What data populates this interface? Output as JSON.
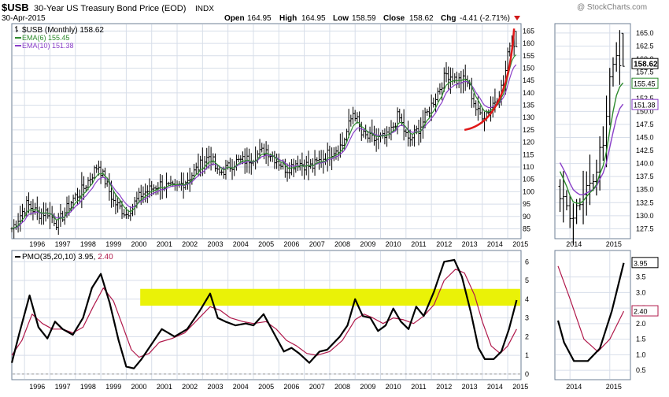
{
  "header": {
    "symbol": "$USB",
    "title": "30-Year US Treasury Bond Price (EOD)",
    "exchange": "INDX",
    "watermark": "@ StockCharts.com",
    "date": "30-Apr-2015",
    "open_label": "Open",
    "open": "164.95",
    "high_label": "High",
    "high": "164.95",
    "low_label": "Low",
    "low": "158.59",
    "close_label": "Close",
    "close": "158.62",
    "chg_label": "Chg",
    "chg": "-4.41 (-2.71%)"
  },
  "colors": {
    "background": "#ffffff",
    "plot_bg": "#ffffff",
    "panel_border": "#6d7f96",
    "grid": "#d7dee9",
    "price_bars": "#000000",
    "ema6": "#2e8b2e",
    "ema10": "#8a3fc8",
    "pmo": "#000000",
    "pmo_signal": "#b0184a",
    "highlight_band": "#eaf207",
    "arc": "#e01818",
    "down_triangle": "#d01818",
    "zero_line": "#9a9a9a"
  },
  "chart_data": [
    {
      "type": "ohlc",
      "panel": "price-main",
      "legend": [
        {
          "label": "$USB (Monthly) 158.62",
          "color": "#000000",
          "icon": "ohlc-bar-icon"
        },
        {
          "label": "EMA(6) 155.45",
          "color": "#2e8b2e"
        },
        {
          "label": "EMA(10) 151.38",
          "color": "#8a3fc8"
        }
      ],
      "x_range": [
        1995.5,
        2015.4
      ],
      "ylim": [
        81,
        168
      ],
      "y_ticks": [
        85,
        90,
        95,
        100,
        105,
        110,
        115,
        120,
        125,
        130,
        135,
        140,
        145,
        150,
        155,
        160,
        165
      ],
      "x_ticks": [
        "1996",
        "1997",
        "1998",
        "1999",
        "2000",
        "2001",
        "2002",
        "2003",
        "2004",
        "2005",
        "2006",
        "2007",
        "2008",
        "2009",
        "2010",
        "2011",
        "2012",
        "2013",
        "2014",
        "2015"
      ],
      "close_anchors": [
        [
          1995.5,
          85
        ],
        [
          1996.1,
          95
        ],
        [
          1996.55,
          91
        ],
        [
          1996.9,
          92
        ],
        [
          1997.3,
          87
        ],
        [
          1997.9,
          97
        ],
        [
          1998.3,
          101
        ],
        [
          1998.9,
          111
        ],
        [
          1999.5,
          96
        ],
        [
          2000.0,
          91
        ],
        [
          2000.6,
          99
        ],
        [
          2001.3,
          103
        ],
        [
          2001.9,
          101
        ],
        [
          2002.4,
          105
        ],
        [
          2003.3,
          115
        ],
        [
          2003.6,
          107
        ],
        [
          2004.3,
          112
        ],
        [
          2004.8,
          113
        ],
        [
          2005.5,
          117
        ],
        [
          2006.3,
          109
        ],
        [
          2006.7,
          112
        ],
        [
          2007.3,
          110
        ],
        [
          2007.9,
          115
        ],
        [
          2008.5,
          119
        ],
        [
          2008.95,
          133
        ],
        [
          2009.25,
          123
        ],
        [
          2009.7,
          121
        ],
        [
          2010.3,
          122
        ],
        [
          2010.7,
          131
        ],
        [
          2011.1,
          120
        ],
        [
          2011.6,
          127
        ],
        [
          2012.0,
          135
        ],
        [
          2012.6,
          148
        ],
        [
          2013.0,
          145
        ],
        [
          2013.4,
          145
        ],
        [
          2013.8,
          132
        ],
        [
          2014.1,
          131
        ],
        [
          2014.5,
          137
        ],
        [
          2014.85,
          144
        ],
        [
          2015.1,
          162
        ],
        [
          2015.35,
          158.62
        ]
      ],
      "ema6_last": 155.45,
      "ema10_last": 151.38,
      "last_close": 158.62,
      "annotation": "red arc under price (rounded bottom)"
    },
    {
      "type": "ohlc",
      "panel": "price-zoom",
      "x_ticks": [
        "2014",
        "2015"
      ],
      "ylim": [
        125.6,
        166.8
      ],
      "y_ticks": [
        127.5,
        130.0,
        132.5,
        135.0,
        137.5,
        140.0,
        142.5,
        145.0,
        147.5,
        150.0,
        152.5,
        155.0,
        157.5,
        160.0,
        162.5,
        165.0
      ],
      "value_labels": [
        {
          "text": "158.62",
          "value": 158.62
        },
        {
          "text": "155.45",
          "value": 155.45
        },
        {
          "text": "151.38",
          "value": 151.38
        }
      ]
    },
    {
      "type": "line",
      "panel": "pmo-main",
      "legend": {
        "text": "PMO(35,20,10) 3.95, 2.40",
        "value1": "3.95",
        "value2": "2.40"
      },
      "ylim": [
        -0.3,
        6.6
      ],
      "y_ticks": [
        0,
        1,
        2,
        3,
        4,
        5,
        6
      ],
      "highlight_band": [
        3.65,
        4.55
      ],
      "series": [
        {
          "name": "PMO",
          "color": "#000000",
          "points": [
            [
              1995.5,
              0.6
            ],
            [
              1995.8,
              2.2
            ],
            [
              1996.2,
              4.2
            ],
            [
              1996.55,
              2.5
            ],
            [
              1996.9,
              1.9
            ],
            [
              1997.2,
              2.8
            ],
            [
              1997.5,
              2.4
            ],
            [
              1997.9,
              2.1
            ],
            [
              1998.3,
              3.0
            ],
            [
              1998.65,
              4.6
            ],
            [
              1999.0,
              5.35
            ],
            [
              1999.35,
              3.8
            ],
            [
              1999.7,
              1.8
            ],
            [
              2000.0,
              0.4
            ],
            [
              2000.3,
              0.3
            ],
            [
              2000.6,
              0.8
            ],
            [
              2001.0,
              1.6
            ],
            [
              2001.4,
              2.4
            ],
            [
              2001.9,
              2.0
            ],
            [
              2002.4,
              2.4
            ],
            [
              2002.9,
              3.4
            ],
            [
              2003.3,
              4.3
            ],
            [
              2003.6,
              3.0
            ],
            [
              2003.9,
              2.8
            ],
            [
              2004.3,
              2.6
            ],
            [
              2004.7,
              2.7
            ],
            [
              2005.0,
              2.6
            ],
            [
              2005.4,
              3.2
            ],
            [
              2005.8,
              2.2
            ],
            [
              2006.2,
              1.2
            ],
            [
              2006.5,
              1.4
            ],
            [
              2006.8,
              1.1
            ],
            [
              2007.2,
              0.6
            ],
            [
              2007.6,
              1.2
            ],
            [
              2007.9,
              1.3
            ],
            [
              2008.4,
              2.0
            ],
            [
              2008.7,
              2.6
            ],
            [
              2009.0,
              4.0
            ],
            [
              2009.3,
              3.1
            ],
            [
              2009.6,
              3.0
            ],
            [
              2009.9,
              2.3
            ],
            [
              2010.2,
              2.6
            ],
            [
              2010.5,
              3.5
            ],
            [
              2010.8,
              2.8
            ],
            [
              2011.1,
              2.4
            ],
            [
              2011.4,
              3.6
            ],
            [
              2011.7,
              3.1
            ],
            [
              2012.1,
              4.4
            ],
            [
              2012.5,
              6.0
            ],
            [
              2012.9,
              6.1
            ],
            [
              2013.2,
              5.2
            ],
            [
              2013.55,
              3.3
            ],
            [
              2013.85,
              1.4
            ],
            [
              2014.1,
              0.8
            ],
            [
              2014.45,
              0.8
            ],
            [
              2014.75,
              1.2
            ],
            [
              2015.05,
              2.4
            ],
            [
              2015.35,
              3.95
            ]
          ]
        },
        {
          "name": "Signal",
          "color": "#b0184a",
          "points": [
            [
              1995.5,
              1.0
            ],
            [
              1995.9,
              1.8
            ],
            [
              1996.3,
              3.2
            ],
            [
              1996.7,
              2.7
            ],
            [
              1997.1,
              2.4
            ],
            [
              1997.5,
              2.4
            ],
            [
              1997.9,
              2.2
            ],
            [
              1998.3,
              2.5
            ],
            [
              1998.7,
              3.6
            ],
            [
              1999.1,
              4.6
            ],
            [
              1999.5,
              3.9
            ],
            [
              1999.85,
              2.6
            ],
            [
              2000.2,
              1.3
            ],
            [
              2000.5,
              0.9
            ],
            [
              2000.9,
              1.1
            ],
            [
              2001.3,
              1.7
            ],
            [
              2001.8,
              1.9
            ],
            [
              2002.3,
              2.2
            ],
            [
              2002.8,
              2.9
            ],
            [
              2003.3,
              3.6
            ],
            [
              2003.7,
              3.4
            ],
            [
              2004.1,
              3.0
            ],
            [
              2004.6,
              2.8
            ],
            [
              2005.0,
              2.7
            ],
            [
              2005.5,
              2.8
            ],
            [
              2005.9,
              2.4
            ],
            [
              2006.3,
              1.8
            ],
            [
              2006.7,
              1.5
            ],
            [
              2007.1,
              1.1
            ],
            [
              2007.5,
              1.0
            ],
            [
              2008.0,
              1.2
            ],
            [
              2008.5,
              1.8
            ],
            [
              2009.0,
              2.9
            ],
            [
              2009.35,
              3.2
            ],
            [
              2009.7,
              3.0
            ],
            [
              2010.1,
              2.7
            ],
            [
              2010.5,
              3.0
            ],
            [
              2010.9,
              2.9
            ],
            [
              2011.3,
              2.7
            ],
            [
              2011.7,
              3.1
            ],
            [
              2012.1,
              3.7
            ],
            [
              2012.5,
              5.0
            ],
            [
              2012.95,
              5.6
            ],
            [
              2013.3,
              5.4
            ],
            [
              2013.7,
              4.2
            ],
            [
              2014.0,
              2.8
            ],
            [
              2014.35,
              1.5
            ],
            [
              2014.7,
              1.1
            ],
            [
              2015.0,
              1.5
            ],
            [
              2015.35,
              2.4
            ]
          ]
        }
      ]
    },
    {
      "type": "line",
      "panel": "pmo-zoom",
      "x_ticks": [
        "2014",
        "2015"
      ],
      "ylim": [
        0.2,
        4.35
      ],
      "y_ticks": [
        0.5,
        1.0,
        1.5,
        2.0,
        2.5,
        3.0,
        3.5
      ],
      "value_labels": [
        {
          "text": "3.95",
          "value": 3.95
        },
        {
          "text": "2.40",
          "value": 2.4
        }
      ]
    }
  ]
}
